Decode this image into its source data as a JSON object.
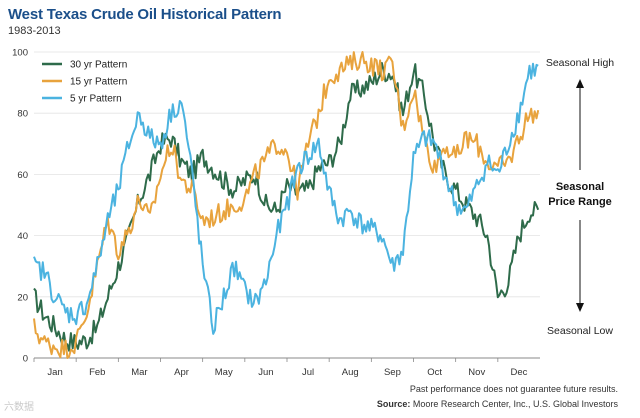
{
  "title": "West Texas Crude Oil Historical Pattern",
  "subtitle": "1983-2013",
  "annotations": {
    "top": "Seasonal High",
    "middle_line1": "Seasonal",
    "middle_line2": "Price Range",
    "bottom": "Seasonal Low"
  },
  "footnote": {
    "disclaimer": "Past performance does not guarantee future results.",
    "source_label": "Source:",
    "source_text": "Moore Research Center, Inc., U.S. Global Investors"
  },
  "watermark": "六数据",
  "chart_data": {
    "type": "line",
    "title": "West Texas Crude Oil Historical Pattern",
    "subtitle": "1983-2013",
    "xlabel": "",
    "ylabel": "",
    "ylim": [
      0,
      100
    ],
    "yticks": [
      0,
      20,
      40,
      60,
      80,
      100
    ],
    "xlim": [
      0,
      12
    ],
    "categories": [
      "Jan",
      "Feb",
      "Mar",
      "Apr",
      "May",
      "Jun",
      "Jul",
      "Aug",
      "Sep",
      "Oct",
      "Nov",
      "Dec"
    ],
    "legend_position": "top-left",
    "series": [
      {
        "name": "30 yr Pattern",
        "color": "#2e6b4a",
        "x": [
          0,
          0.25,
          0.5,
          0.75,
          1,
          1.25,
          1.5,
          1.75,
          2,
          2.25,
          2.5,
          2.75,
          3,
          3.25,
          3.5,
          3.75,
          4,
          4.25,
          4.5,
          4.75,
          5,
          5.25,
          5.5,
          5.75,
          6,
          6.25,
          6.5,
          6.75,
          7,
          7.25,
          7.5,
          7.75,
          8,
          8.25,
          8.5,
          8.75,
          9,
          9.25,
          9.5,
          9.75,
          10,
          10.25,
          10.5,
          10.75,
          11,
          11.25,
          11.5,
          11.75
        ],
        "y": [
          20,
          14,
          10,
          6,
          5,
          6,
          10,
          20,
          30,
          40,
          52,
          60,
          70,
          72,
          64,
          60,
          66,
          62,
          58,
          55,
          58,
          60,
          50,
          48,
          56,
          54,
          55,
          62,
          64,
          70,
          86,
          88,
          90,
          94,
          93,
          80,
          94,
          86,
          70,
          60,
          55,
          50,
          46,
          40,
          20,
          25,
          40,
          48
        ]
      },
      {
        "name": "15 yr Pattern",
        "color": "#e8a33d",
        "x": [
          0,
          0.25,
          0.5,
          0.75,
          1,
          1.25,
          1.5,
          1.75,
          2,
          2.25,
          2.5,
          2.75,
          3,
          3.25,
          3.5,
          3.75,
          4,
          4.25,
          4.5,
          4.75,
          5,
          5.25,
          5.5,
          5.75,
          6,
          6.25,
          6.5,
          6.75,
          7,
          7.25,
          7.5,
          7.75,
          8,
          8.25,
          8.5,
          8.75,
          9,
          9.25,
          9.5,
          9.75,
          10,
          10.25,
          10.5,
          10.75,
          11,
          11.25,
          11.5,
          11.75
        ],
        "y": [
          10,
          5,
          4,
          3,
          5,
          15,
          30,
          45,
          35,
          42,
          52,
          45,
          60,
          70,
          58,
          55,
          45,
          46,
          48,
          50,
          52,
          60,
          65,
          70,
          68,
          55,
          70,
          80,
          92,
          94,
          96,
          98,
          96,
          94,
          96,
          75,
          88,
          72,
          62,
          70,
          65,
          72,
          70,
          64,
          62,
          64,
          72,
          80
        ]
      },
      {
        "name": "5 yr Pattern",
        "color": "#4bb3e0",
        "x": [
          0,
          0.25,
          0.5,
          0.75,
          1,
          1.25,
          1.5,
          1.75,
          2,
          2.25,
          2.5,
          2.75,
          3,
          3.25,
          3.5,
          3.75,
          4,
          4.25,
          4.5,
          4.75,
          5,
          5.25,
          5.5,
          5.75,
          6,
          6.25,
          6.5,
          6.75,
          7,
          7.25,
          7.5,
          7.75,
          8,
          8.25,
          8.5,
          8.75,
          9,
          9.25,
          9.5,
          9.75,
          10,
          10.25,
          10.5,
          10.75,
          11,
          11.25,
          11.5,
          11.75
        ],
        "y": [
          30,
          28,
          20,
          15,
          14,
          18,
          30,
          45,
          55,
          70,
          80,
          72,
          70,
          80,
          84,
          60,
          30,
          10,
          20,
          30,
          22,
          18,
          25,
          40,
          50,
          62,
          66,
          70,
          54,
          45,
          48,
          44,
          42,
          40,
          30,
          35,
          65,
          72,
          70,
          60,
          50,
          48,
          56,
          64,
          60,
          70,
          80,
          94
        ]
      }
    ]
  }
}
